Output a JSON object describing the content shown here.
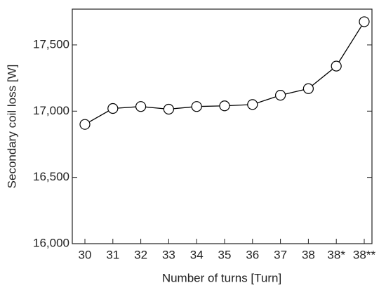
{
  "chart_data": {
    "type": "line",
    "x_label": "Number of turns [Turn]",
    "y_label": "Secondary coil loss [W]",
    "categories": [
      "30",
      "31",
      "32",
      "33",
      "34",
      "35",
      "36",
      "37",
      "38",
      "38*",
      "38**"
    ],
    "values": [
      16900,
      17020,
      17035,
      17015,
      17035,
      17040,
      17050,
      17120,
      17170,
      17340,
      17675
    ],
    "color": "#000000",
    "ylim": [
      16000,
      17770
    ],
    "yticks": [
      {
        "value": 16000,
        "label": "16,000"
      },
      {
        "value": 16500,
        "label": "16,500"
      },
      {
        "value": 17000,
        "label": "17,000"
      },
      {
        "value": 17500,
        "label": "17,500"
      }
    ]
  }
}
